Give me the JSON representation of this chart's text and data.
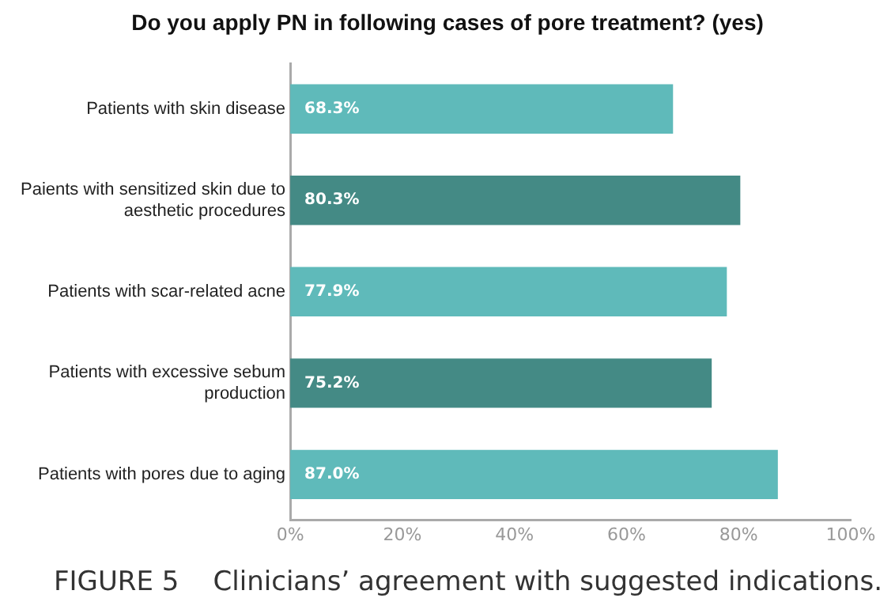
{
  "chart_data": {
    "type": "bar",
    "orientation": "horizontal",
    "title": "Do you apply PN in following cases of pore treatment? (yes)",
    "categories": [
      "Patients with skin disease",
      "Paients with sensitized skin due to aesthetic procedures",
      "Patients with scar-related acne",
      "Patients with excessive sebum production",
      "Patients with pores due to aging"
    ],
    "values": [
      68.3,
      80.3,
      77.9,
      75.2,
      87.0
    ],
    "colors": [
      "#5fbaba",
      "#448a85",
      "#5fbaba",
      "#448a85",
      "#5fbaba"
    ],
    "value_labels": [
      "68.3%",
      "80.3%",
      "77.9%",
      "75.2%",
      "87.0%"
    ],
    "xlim": [
      0,
      100
    ],
    "xticks": [
      {
        "value": 0,
        "label": "0%"
      },
      {
        "value": 20,
        "label": "20%"
      },
      {
        "value": 40,
        "label": "40%"
      },
      {
        "value": 60,
        "label": "60%"
      },
      {
        "value": 80,
        "label": "80%"
      },
      {
        "value": 100,
        "label": "100%"
      }
    ],
    "grid": false,
    "legend": false,
    "annotations": [
      "FIGURE 5    Clinicians’ agreement with suggested indications."
    ]
  }
}
